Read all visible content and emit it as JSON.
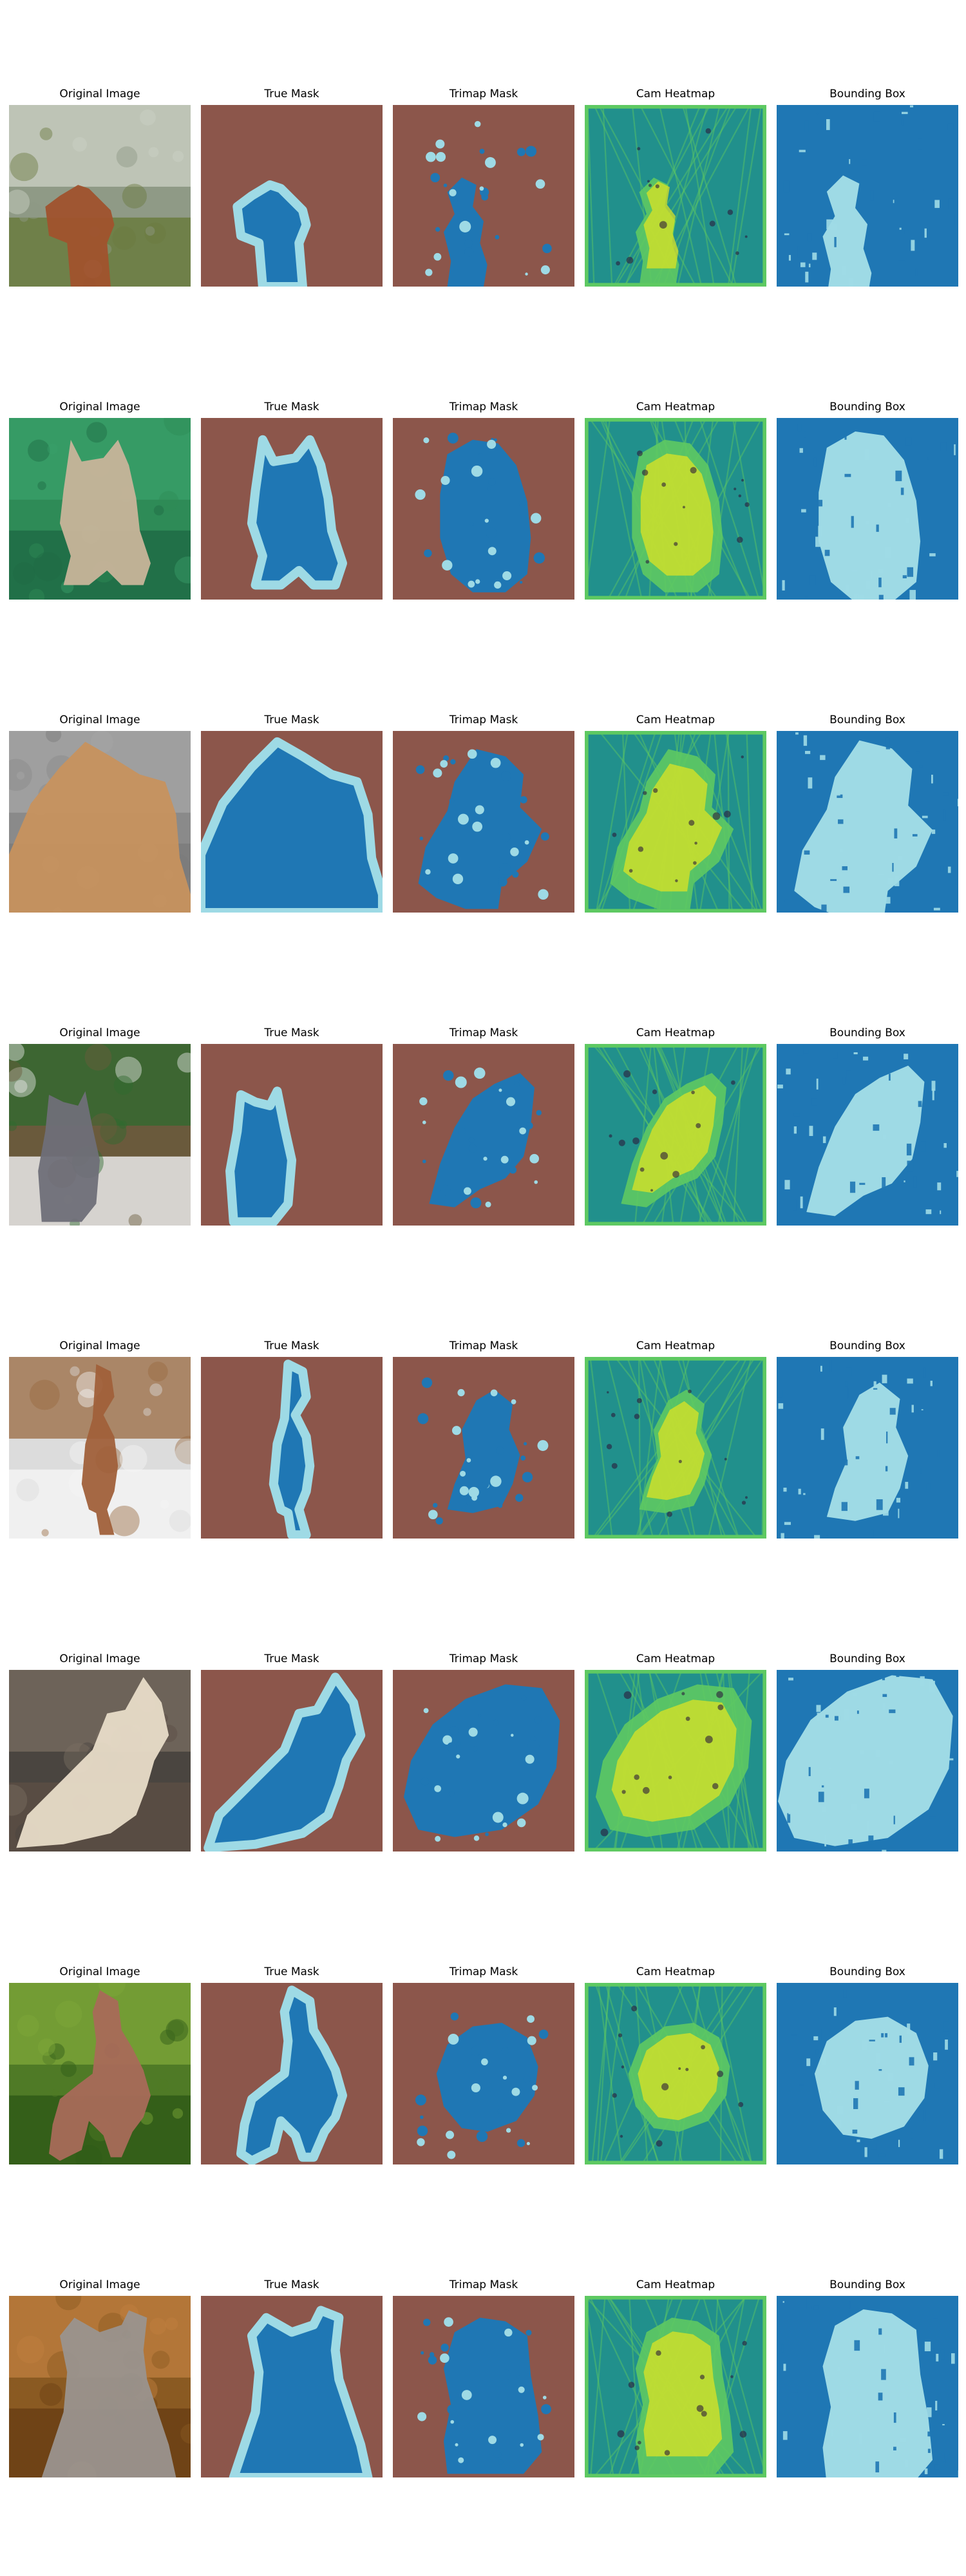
{
  "column_titles": [
    "Original Image",
    "True Mask",
    "Trimap Mask",
    "Cam Heatmap",
    "Bounding Box"
  ],
  "colors": {
    "background": "#ffffff",
    "mask_background": "#8c564b",
    "mask_foreground": "#1f77b4",
    "mask_boundary": "#9edae5",
    "heatmap_low": "#21908c",
    "heatmap_mid": "#5ec962",
    "heatmap_high": "#e6e61f"
  },
  "rows": [
    {
      "subject": "dog",
      "original_icon": "brown-dog-on-grass-photo"
    },
    {
      "subject": "cat",
      "original_icon": "sphynx-cat-green-backdrop-photo"
    },
    {
      "subject": "cat",
      "original_icon": "fluffy-persian-cat-photo"
    },
    {
      "subject": "cat",
      "original_icon": "grey-cat-with-flowers-photo"
    },
    {
      "subject": "dog",
      "original_icon": "boxer-dog-on-porch-photo"
    },
    {
      "subject": "cat",
      "original_icon": "siamese-cat-lying-photo"
    },
    {
      "subject": "dog",
      "original_icon": "brown-pitbull-on-grass-photo"
    },
    {
      "subject": "cat",
      "original_icon": "grey-british-shorthair-photo"
    }
  ]
}
